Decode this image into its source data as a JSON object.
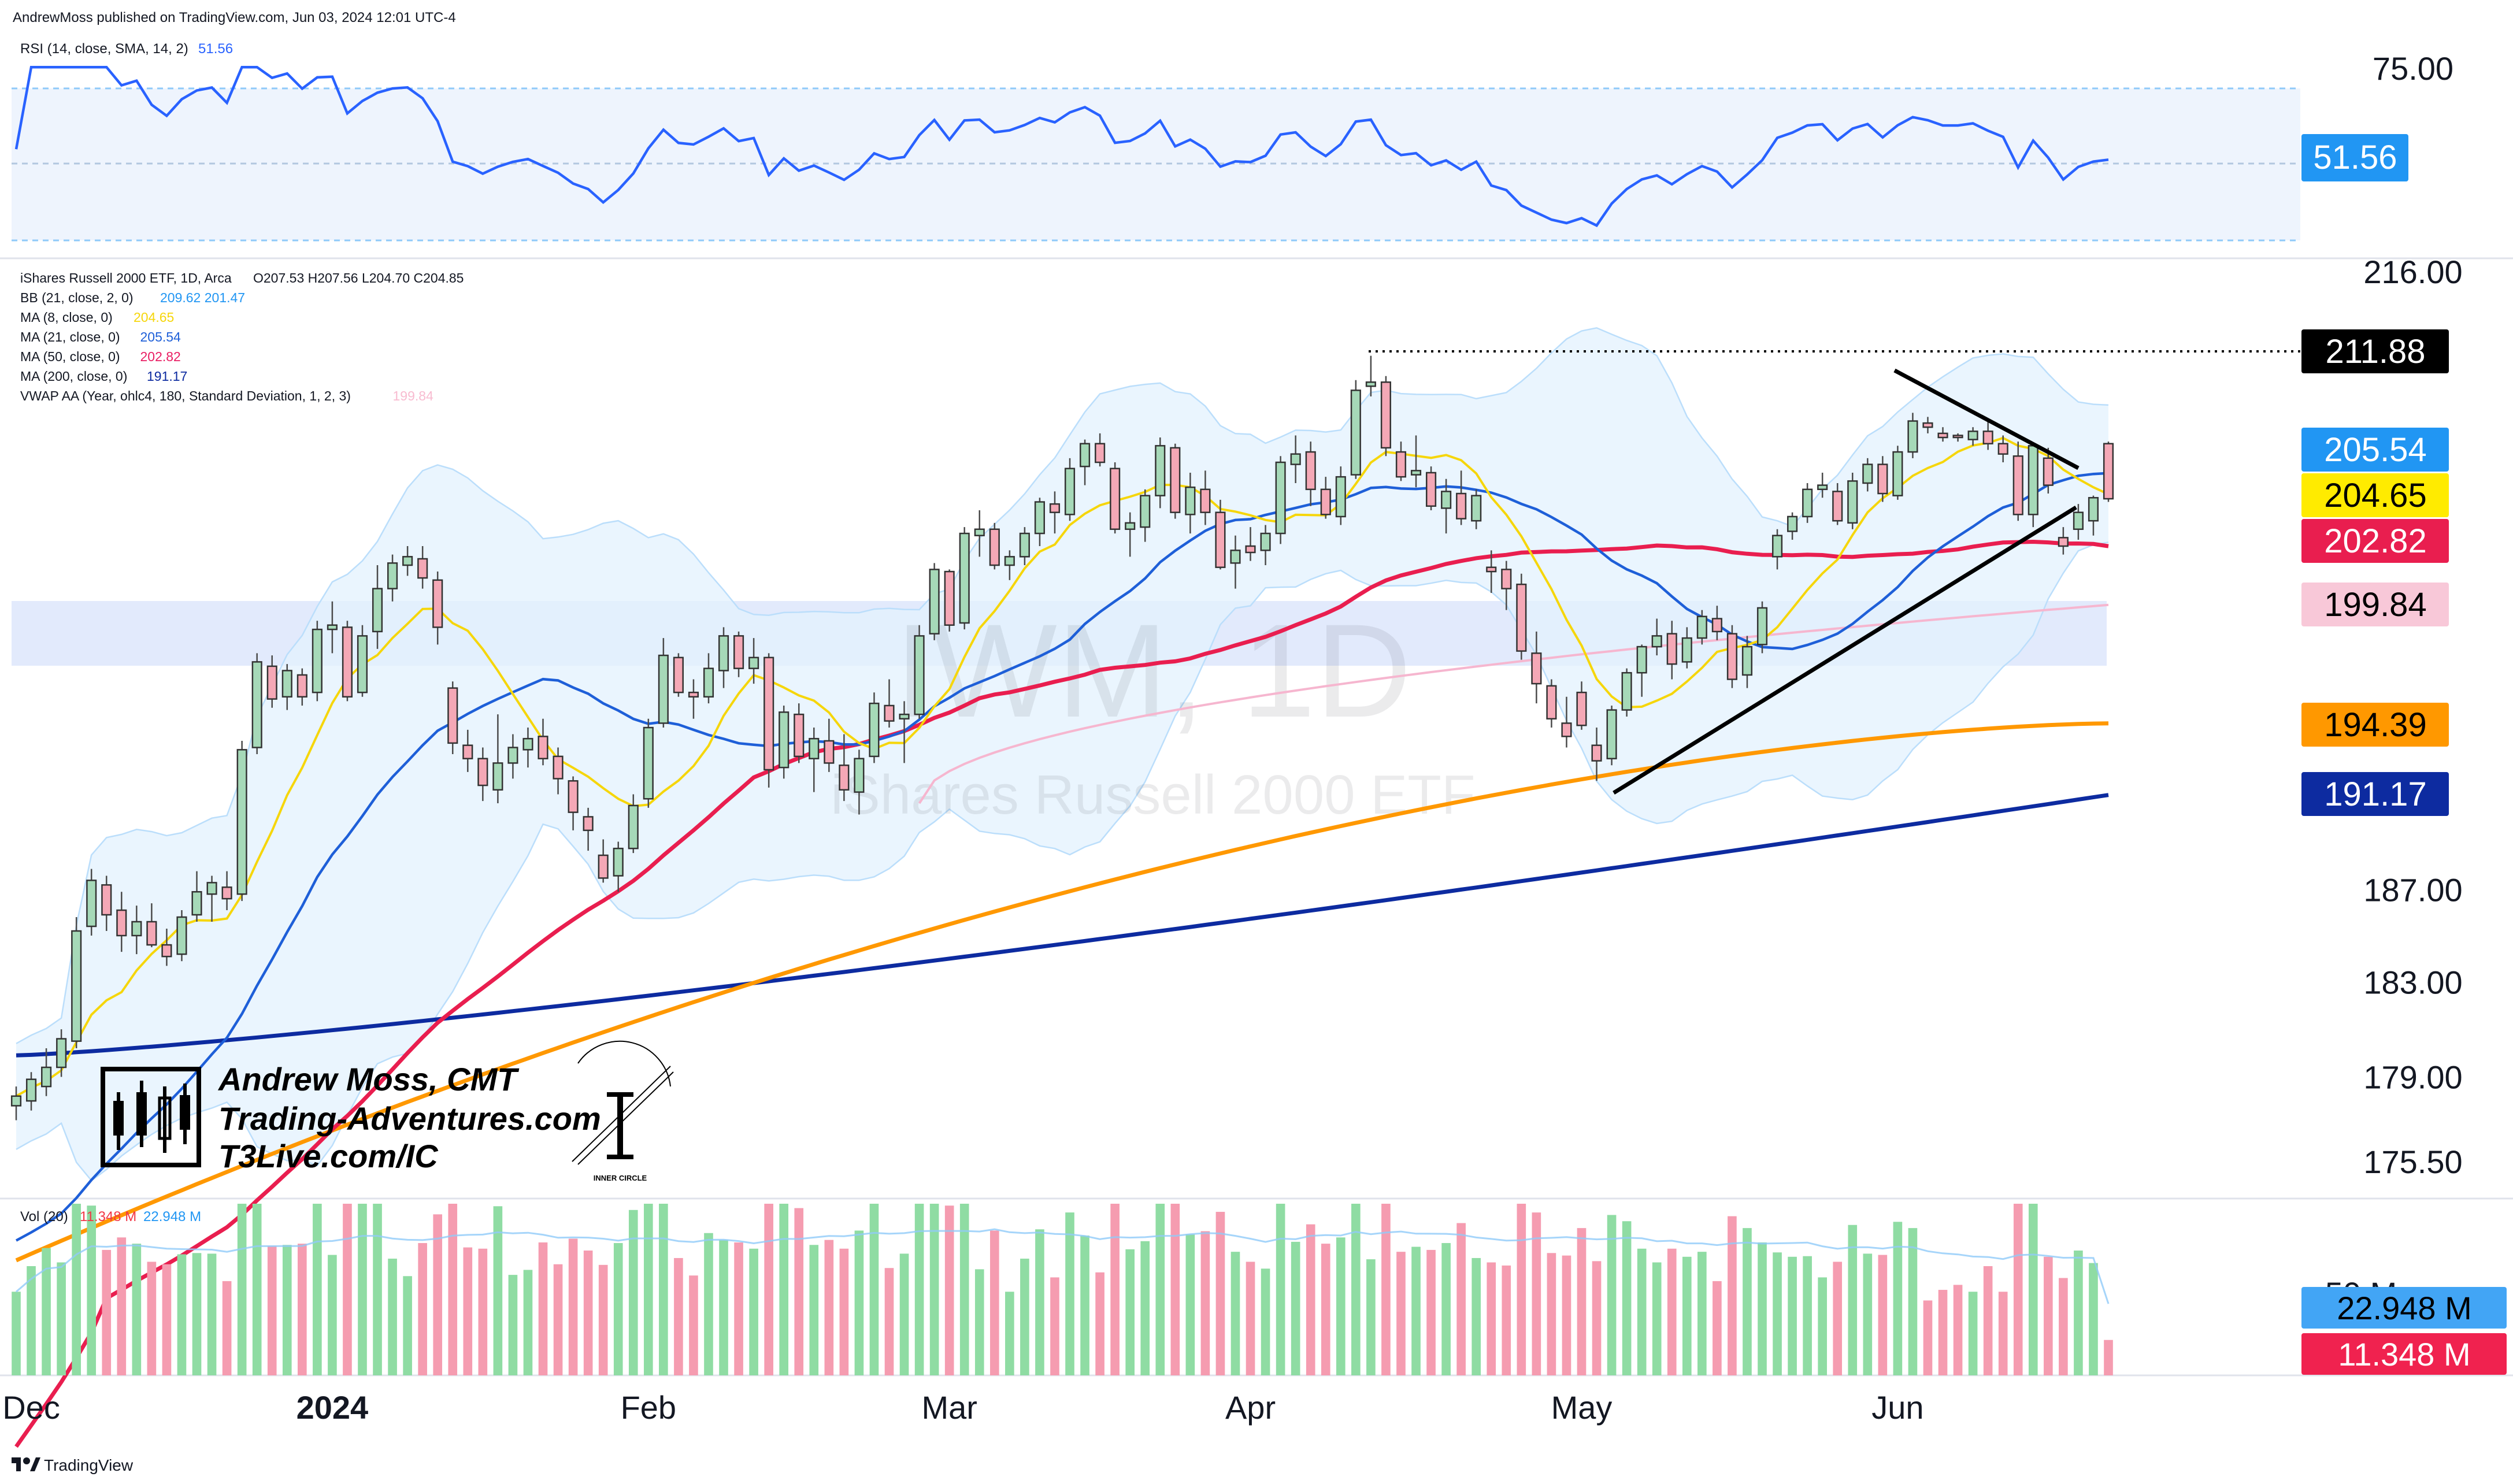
{
  "header": {
    "published": "AndrewMoss published on TradingView.com, Jun 03, 2024 12:01 UTC-4"
  },
  "footer": {
    "brand": "TradingView"
  },
  "watermark": {
    "symbol": "IWM, 1D",
    "name": "iShares Russell 2000 ETF"
  },
  "branding": {
    "line1": "Andrew Moss, CMT",
    "line2": "Trading-Adventures.com",
    "line3": "T3Live.com/IC",
    "seal_text": "INNER CIRCLE"
  },
  "rsi_pane": {
    "legend_title": "RSI (14, close, SMA, 14, 2)",
    "legend_value": "51.56",
    "axis_label": "75.00",
    "value_badge": "51.56",
    "colors": {
      "line": "#2962ff",
      "band_fill": "#e9f1fb",
      "badge": "#2196f3"
    }
  },
  "price_pane": {
    "legend": [
      {
        "label": "iShares Russell 2000 ETF, 1D, Arca",
        "values": "O207.53  H207.56  L204.70  C204.85",
        "color": "#131722"
      },
      {
        "label": "BB (21, close, 2, 0)",
        "values": "209.62  201.47",
        "color": "#2196f3"
      },
      {
        "label": "MA (8, close, 0)",
        "values": "204.65",
        "color": "#f6d60a"
      },
      {
        "label": "MA (21, close, 0)",
        "values": "205.54",
        "color": "#1e5fd8"
      },
      {
        "label": "MA (50, close, 0)",
        "values": "202.82",
        "color": "#e91e63"
      },
      {
        "label": "MA (200, close, 0)",
        "values": "191.17",
        "color": "#0d2ba0"
      },
      {
        "label": "VWAP AA (Year, ohlc4, 180, Standard Deviation, 1, 2, 3)",
        "values": "199.84",
        "color": "#f8bbd0"
      }
    ],
    "axis_labels": [
      "216.00",
      "187.00",
      "183.00",
      "179.00",
      "175.50"
    ],
    "badges": [
      {
        "text": "211.88",
        "bg": "#000000",
        "fg": "#ffffff"
      },
      {
        "text": "205.54",
        "bg": "#2196f3",
        "fg": "#ffffff"
      },
      {
        "text": "204.65",
        "bg": "#ffeb00",
        "fg": "#000000"
      },
      {
        "text": "202.82",
        "bg": "#e91e4f",
        "fg": "#ffffff"
      },
      {
        "text": "199.84",
        "bg": "#f8c8d8",
        "fg": "#000000"
      },
      {
        "text": "194.39",
        "bg": "#ff9800",
        "fg": "#000000"
      },
      {
        "text": "191.17",
        "bg": "#0d2ba0",
        "fg": "#ffffff"
      }
    ]
  },
  "volume_pane": {
    "legend_title": "Vol (20)",
    "legend_value1": "11.348 M",
    "legend_value2": "22.948 M",
    "axis_label": "50 M",
    "badges": [
      {
        "text": "22.948 M",
        "bg": "#42a5f5",
        "fg": "#000000"
      },
      {
        "text": "11.348 M",
        "bg": "#f0224f",
        "fg": "#ffffff"
      }
    ]
  },
  "x_axis": {
    "labels": [
      "Dec",
      "2024",
      "Feb",
      "Mar",
      "Apr",
      "May",
      "Jun"
    ]
  },
  "chart_data": {
    "type": "candlestick",
    "symbol": "IWM",
    "timeframe": "1D",
    "candles_ohlc": [
      [
        177.8,
        178.6,
        177.2,
        178.2
      ],
      [
        178.0,
        179.2,
        177.6,
        178.9
      ],
      [
        178.6,
        180.2,
        178.2,
        179.4
      ],
      [
        179.4,
        181.0,
        179.0,
        180.6
      ],
      [
        180.5,
        185.8,
        180.2,
        185.2
      ],
      [
        185.4,
        187.9,
        185.0,
        187.4
      ],
      [
        187.2,
        187.6,
        185.2,
        185.9
      ],
      [
        186.1,
        186.9,
        184.3,
        185.0
      ],
      [
        185.0,
        186.3,
        184.2,
        185.6
      ],
      [
        185.6,
        186.4,
        184.5,
        184.6
      ],
      [
        184.6,
        185.3,
        183.7,
        184.1
      ],
      [
        184.2,
        186.1,
        183.9,
        185.8
      ],
      [
        185.9,
        187.8,
        185.6,
        186.9
      ],
      [
        186.8,
        187.6,
        185.6,
        187.3
      ],
      [
        187.1,
        187.8,
        186.1,
        186.6
      ],
      [
        186.8,
        193.6,
        186.5,
        193.2
      ],
      [
        193.3,
        197.6,
        193.0,
        197.2
      ],
      [
        197.0,
        197.5,
        195.1,
        195.5
      ],
      [
        195.6,
        197.1,
        195.0,
        196.8
      ],
      [
        196.6,
        196.9,
        195.2,
        195.6
      ],
      [
        195.8,
        199.1,
        195.4,
        198.7
      ],
      [
        198.7,
        200.0,
        197.6,
        198.9
      ],
      [
        198.8,
        199.1,
        195.4,
        195.6
      ],
      [
        195.8,
        198.9,
        195.6,
        198.4
      ],
      [
        198.6,
        201.7,
        197.8,
        200.6
      ],
      [
        200.6,
        202.2,
        200.0,
        201.8
      ],
      [
        201.7,
        202.6,
        201.2,
        202.1
      ],
      [
        202.0,
        202.6,
        200.6,
        201.1
      ],
      [
        201.0,
        201.4,
        198.0,
        198.8
      ],
      [
        196.0,
        196.3,
        193.0,
        193.5
      ],
      [
        193.4,
        194.1,
        192.2,
        192.8
      ],
      [
        192.8,
        193.3,
        190.9,
        191.6
      ],
      [
        191.4,
        194.8,
        190.8,
        192.6
      ],
      [
        192.6,
        193.9,
        191.9,
        193.3
      ],
      [
        193.2,
        194.2,
        192.4,
        193.7
      ],
      [
        193.8,
        194.6,
        192.5,
        192.8
      ],
      [
        192.9,
        193.3,
        191.2,
        191.9
      ],
      [
        191.8,
        192.0,
        189.6,
        190.4
      ],
      [
        190.2,
        190.6,
        188.7,
        189.6
      ],
      [
        188.5,
        189.2,
        187.3,
        187.5
      ],
      [
        187.6,
        189.1,
        186.9,
        188.8
      ],
      [
        188.8,
        191.2,
        188.6,
        190.7
      ],
      [
        191.0,
        194.6,
        190.6,
        194.2
      ],
      [
        194.4,
        198.3,
        194.2,
        197.5
      ],
      [
        197.4,
        197.6,
        195.6,
        195.8
      ],
      [
        195.8,
        196.4,
        194.6,
        195.6
      ],
      [
        195.6,
        197.6,
        195.3,
        196.9
      ],
      [
        196.8,
        198.8,
        196.0,
        198.4
      ],
      [
        198.4,
        198.6,
        196.5,
        196.9
      ],
      [
        196.9,
        198.3,
        196.2,
        197.4
      ],
      [
        197.4,
        197.6,
        191.5,
        192.3
      ],
      [
        192.4,
        195.2,
        191.9,
        194.9
      ],
      [
        194.8,
        195.3,
        192.6,
        192.9
      ],
      [
        192.8,
        194.2,
        191.3,
        193.7
      ],
      [
        193.6,
        194.6,
        192.2,
        192.6
      ],
      [
        192.5,
        193.9,
        190.9,
        191.4
      ],
      [
        191.3,
        193.2,
        190.3,
        192.8
      ],
      [
        192.9,
        195.8,
        192.6,
        195.3
      ],
      [
        195.2,
        196.4,
        194.2,
        194.5
      ],
      [
        194.6,
        195.4,
        192.6,
        194.8
      ],
      [
        194.8,
        198.9,
        194.6,
        198.4
      ],
      [
        198.5,
        201.8,
        198.2,
        201.5
      ],
      [
        201.4,
        201.5,
        198.6,
        198.9
      ],
      [
        199.0,
        203.5,
        198.7,
        203.2
      ],
      [
        203.1,
        204.3,
        202.1,
        203.4
      ],
      [
        203.4,
        203.7,
        201.5,
        201.7
      ],
      [
        201.7,
        202.4,
        201.0,
        202.1
      ],
      [
        202.1,
        203.5,
        201.7,
        203.2
      ],
      [
        203.2,
        204.9,
        202.6,
        204.7
      ],
      [
        204.6,
        205.2,
        203.2,
        204.2
      ],
      [
        204.1,
        206.8,
        203.8,
        206.3
      ],
      [
        206.4,
        207.7,
        205.5,
        207.5
      ],
      [
        207.5,
        208.0,
        206.4,
        206.6
      ],
      [
        206.3,
        206.6,
        203.2,
        203.4
      ],
      [
        203.4,
        204.2,
        202.1,
        203.7
      ],
      [
        203.5,
        205.3,
        202.8,
        205.0
      ],
      [
        205.0,
        207.8,
        204.4,
        207.4
      ],
      [
        207.3,
        207.5,
        203.9,
        204.2
      ],
      [
        204.1,
        206.1,
        203.2,
        205.4
      ],
      [
        205.3,
        206.2,
        203.6,
        204.2
      ],
      [
        204.2,
        204.8,
        201.5,
        201.6
      ],
      [
        201.8,
        203.1,
        200.6,
        202.4
      ],
      [
        202.6,
        203.5,
        201.9,
        202.3
      ],
      [
        202.4,
        203.6,
        201.7,
        203.2
      ],
      [
        203.2,
        206.9,
        202.7,
        206.6
      ],
      [
        206.5,
        207.9,
        205.6,
        207.0
      ],
      [
        207.1,
        207.6,
        204.5,
        205.3
      ],
      [
        205.3,
        205.9,
        203.9,
        204.1
      ],
      [
        204.0,
        206.4,
        203.6,
        205.9
      ],
      [
        206.0,
        210.6,
        205.8,
        210.1
      ],
      [
        210.3,
        211.8,
        209.8,
        210.5
      ],
      [
        210.5,
        210.8,
        206.9,
        207.3
      ],
      [
        207.1,
        207.6,
        205.7,
        205.9
      ],
      [
        206.0,
        207.9,
        205.4,
        206.2
      ],
      [
        206.1,
        206.4,
        204.3,
        204.5
      ],
      [
        204.4,
        205.8,
        203.2,
        205.2
      ],
      [
        205.1,
        206.2,
        203.6,
        203.9
      ],
      [
        203.8,
        205.3,
        203.4,
        205.0
      ],
      [
        201.6,
        202.4,
        200.4,
        201.4
      ],
      [
        201.5,
        201.9,
        199.6,
        200.6
      ],
      [
        200.8,
        201.3,
        197.3,
        197.7
      ],
      [
        197.6,
        198.6,
        195.3,
        196.2
      ],
      [
        196.1,
        196.4,
        194.2,
        194.6
      ],
      [
        194.4,
        195.6,
        193.3,
        193.8
      ],
      [
        195.8,
        196.3,
        194.1,
        194.3
      ],
      [
        193.4,
        194.2,
        191.8,
        192.7
      ],
      [
        192.8,
        195.2,
        192.5,
        195.0
      ],
      [
        195.0,
        196.9,
        194.7,
        196.7
      ],
      [
        196.7,
        198.0,
        195.6,
        197.9
      ],
      [
        197.9,
        199.2,
        197.5,
        198.4
      ],
      [
        198.5,
        199.1,
        196.4,
        197.1
      ],
      [
        197.2,
        198.8,
        196.9,
        198.3
      ],
      [
        198.3,
        199.6,
        198.0,
        199.3
      ],
      [
        199.2,
        199.8,
        198.2,
        198.6
      ],
      [
        198.5,
        198.9,
        196.0,
        196.4
      ],
      [
        196.6,
        198.4,
        196.0,
        197.9
      ],
      [
        198.0,
        200.0,
        197.6,
        199.7
      ],
      [
        202.1,
        203.4,
        201.5,
        203.1
      ],
      [
        203.3,
        204.2,
        202.9,
        204.0
      ],
      [
        204.0,
        205.6,
        203.7,
        205.3
      ],
      [
        205.3,
        206.1,
        204.9,
        205.5
      ],
      [
        205.2,
        205.6,
        203.6,
        203.8
      ],
      [
        203.7,
        206.1,
        203.4,
        205.7
      ],
      [
        205.6,
        206.8,
        205.2,
        206.5
      ],
      [
        206.5,
        206.9,
        204.7,
        205.1
      ],
      [
        205.0,
        207.4,
        204.8,
        207.1
      ],
      [
        207.1,
        209.0,
        206.8,
        208.6
      ],
      [
        208.5,
        208.8,
        208.0,
        208.3
      ],
      [
        208.0,
        208.3,
        207.6,
        207.8
      ],
      [
        207.9,
        208.0,
        207.6,
        207.8
      ],
      [
        207.7,
        208.3,
        207.4,
        208.1
      ],
      [
        208.1,
        208.6,
        207.2,
        207.5
      ],
      [
        207.5,
        207.9,
        206.6,
        207.0
      ],
      [
        206.9,
        207.6,
        203.8,
        204.1
      ],
      [
        204.1,
        207.5,
        203.5,
        207.4
      ],
      [
        206.8,
        207.3,
        205.1,
        205.5
      ],
      [
        203.0,
        203.5,
        202.2,
        202.6
      ],
      [
        203.4,
        204.6,
        202.9,
        204.2
      ],
      [
        203.8,
        205.0,
        203.1,
        204.9
      ],
      [
        207.5,
        207.6,
        204.7,
        204.85
      ]
    ],
    "resistance_level": 211.88,
    "last_values": {
      "ma8": 204.65,
      "ma21": 205.54,
      "ma50": 202.82,
      "ma200": 191.17,
      "vwap": 199.84,
      "bb_upper": 209.62,
      "bb_lower": 201.47,
      "rsi": 51.56,
      "volume_M": 11.348,
      "volume_ma_M": 22.948
    }
  }
}
